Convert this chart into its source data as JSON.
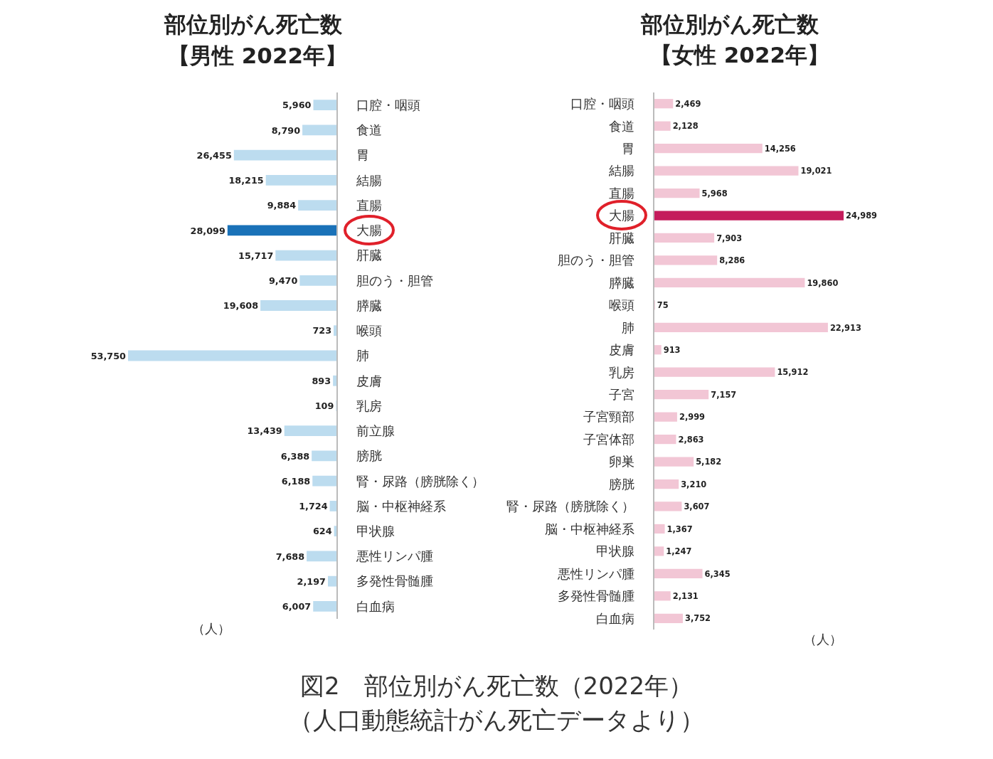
{
  "chart_data": [
    {
      "type": "bar",
      "orientation": "horizontal",
      "title": "部位別がん死亡数",
      "subtitle": "【男性 2022年】",
      "categories": [
        "口腔・咽頭",
        "食道",
        "胃",
        "結腸",
        "直腸",
        "大腸",
        "肝臓",
        "胆のう・胆管",
        "膵臓",
        "喉頭",
        "肺",
        "皮膚",
        "乳房",
        "前立腺",
        "膀胱",
        "腎・尿路（膀胱除く）",
        "脳・中枢神経系",
        "甲状腺",
        "悪性リンパ腫",
        "多発性骨髄腫",
        "白血病"
      ],
      "values": [
        5960,
        8790,
        26455,
        18215,
        9884,
        28099,
        15717,
        9470,
        19608,
        723,
        53750,
        893,
        109,
        13439,
        6388,
        6188,
        1724,
        624,
        7688,
        2197,
        6007
      ],
      "colors": [
        "#bcdcef",
        "#bcdcef",
        "#bcdcef",
        "#bcdcef",
        "#bcdcef",
        "#1a72b8",
        "#bcdcef",
        "#bcdcef",
        "#bcdcef",
        "#bcdcef",
        "#bcdcef",
        "#bcdcef",
        "#bcdcef",
        "#bcdcef",
        "#bcdcef",
        "#bcdcef",
        "#bcdcef",
        "#bcdcef",
        "#bcdcef",
        "#bcdcef",
        "#bcdcef"
      ],
      "value_labels": [
        "5,960",
        "8,790",
        "26,455",
        "18,215",
        "9,884",
        "28,099",
        "15,717",
        "9,470",
        "19,608",
        "723",
        "53,750",
        "893",
        "109",
        "13,439",
        "6,388",
        "6,188",
        "1,724",
        "624",
        "7,688",
        "2,197",
        "6,007"
      ],
      "xlim": [
        53750,
        0
      ],
      "grid": false,
      "legend": false,
      "annotations": [
        "（人）",
        "図2　部位別がん死亡数（2022年）",
        "（人口動態統計がん死亡データより）"
      ]
    },
    {
      "type": "bar",
      "orientation": "horizontal",
      "title": "部位別がん死亡数",
      "subtitle": "【女性 2022年】",
      "categories": [
        "口腔・咽頭",
        "食道",
        "胃",
        "結腸",
        "直腸",
        "大腸",
        "肝臓",
        "胆のう・胆管",
        "膵臓",
        "喉頭",
        "肺",
        "皮膚",
        "乳房",
        "子宮",
        "子宮頸部",
        "子宮体部",
        "卵巣",
        "膀胱",
        "腎・尿路（膀胱除く）",
        "脳・中枢神経系",
        "甲状腺",
        "悪性リンパ腫",
        "多発性骨髄腫",
        "白血病"
      ],
      "values": [
        2469,
        2128,
        14256,
        19021,
        5968,
        24989,
        7903,
        8286,
        19860,
        75,
        22913,
        913,
        15912,
        7157,
        2999,
        2863,
        5182,
        3210,
        3607,
        1367,
        1247,
        6345,
        2131,
        3752
      ],
      "colors": [
        "#f2c6d5",
        "#f2c6d5",
        "#f2c6d5",
        "#f2c6d5",
        "#f2c6d5",
        "#c41c5c",
        "#f2c6d5",
        "#f2c6d5",
        "#f2c6d5",
        "#f2c6d5",
        "#f2c6d5",
        "#f2c6d5",
        "#f2c6d5",
        "#f2c6d5",
        "#f2c6d5",
        "#f2c6d5",
        "#f2c6d5",
        "#f2c6d5",
        "#f2c6d5",
        "#f2c6d5",
        "#f2c6d5",
        "#f2c6d5",
        "#f2c6d5",
        "#f2c6d5"
      ],
      "value_labels": [
        "2,469",
        "2,128",
        "14,256",
        "19,021",
        "5,968",
        "24,989",
        "7,903",
        "8,286",
        "19,860",
        "75",
        "22,913",
        "913",
        "15,912",
        "7,157",
        "2,999",
        "2,863",
        "5,182",
        "3,210",
        "3,607",
        "1,367",
        "1,247",
        "6,345",
        "2,131",
        "3,752"
      ],
      "xlim": [
        0,
        24989
      ],
      "grid": false,
      "legend": false,
      "annotations": [
        "（人）"
      ]
    }
  ]
}
